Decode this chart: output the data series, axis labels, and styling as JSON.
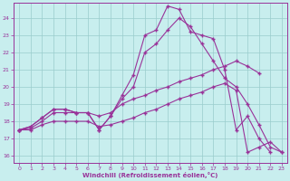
{
  "xlabel": "Windchill (Refroidissement éolien,°C)",
  "bg_color": "#c8eeee",
  "line_color": "#993399",
  "grid_color": "#99cccc",
  "xticks": [
    0,
    1,
    2,
    3,
    4,
    5,
    6,
    7,
    8,
    9,
    10,
    11,
    12,
    13,
    14,
    15,
    16,
    17,
    18,
    19,
    20,
    21,
    22,
    23
  ],
  "yticks": [
    16,
    17,
    18,
    19,
    20,
    21,
    22,
    23,
    24
  ],
  "xlim": [
    -0.5,
    23.5
  ],
  "ylim": [
    15.6,
    24.9
  ],
  "line1_x": [
    0,
    1,
    2,
    3,
    4,
    5,
    6,
    7,
    8,
    9,
    10,
    11,
    12,
    13,
    14,
    15,
    16,
    17,
    18,
    19,
    20,
    21,
    22
  ],
  "line1_y": [
    17.5,
    17.7,
    18.2,
    18.7,
    18.7,
    18.5,
    18.5,
    17.5,
    18.3,
    19.5,
    20.7,
    23.0,
    23.3,
    24.7,
    24.5,
    23.2,
    23.0,
    22.8,
    21.0,
    17.5,
    18.3,
    17.0,
    16.2
  ],
  "line2_x": [
    0,
    1,
    2,
    3,
    4,
    5,
    6,
    7,
    8,
    9,
    10,
    11,
    12,
    13,
    14,
    15,
    16,
    17,
    18,
    19,
    20,
    21,
    22,
    23
  ],
  "line2_y": [
    17.5,
    17.7,
    18.2,
    18.7,
    18.7,
    18.5,
    18.5,
    17.5,
    18.3,
    19.3,
    20.0,
    22.0,
    22.5,
    23.3,
    24.0,
    23.5,
    22.5,
    21.5,
    20.5,
    20.0,
    19.0,
    17.8,
    16.5,
    16.2
  ],
  "line3_x": [
    0,
    1,
    2,
    3,
    4,
    5,
    6,
    7,
    8,
    9,
    10,
    11,
    12,
    13,
    14,
    15,
    16,
    17,
    18,
    19,
    20,
    21
  ],
  "line3_y": [
    17.5,
    17.6,
    18.0,
    18.5,
    18.5,
    18.5,
    18.5,
    18.3,
    18.5,
    19.0,
    19.3,
    19.5,
    19.8,
    20.0,
    20.3,
    20.5,
    20.7,
    21.0,
    21.2,
    21.5,
    21.2,
    20.8
  ],
  "line4_x": [
    0,
    1,
    2,
    3,
    4,
    5,
    6,
    7,
    8,
    9,
    10,
    11,
    12,
    13,
    14,
    15,
    16,
    17,
    18,
    19,
    20,
    21,
    22,
    23
  ],
  "line4_y": [
    17.5,
    17.5,
    17.8,
    18.0,
    18.0,
    18.0,
    18.0,
    17.7,
    17.8,
    18.0,
    18.2,
    18.5,
    18.7,
    19.0,
    19.3,
    19.5,
    19.7,
    20.0,
    20.2,
    19.8,
    16.2,
    16.5,
    16.8,
    16.2
  ]
}
